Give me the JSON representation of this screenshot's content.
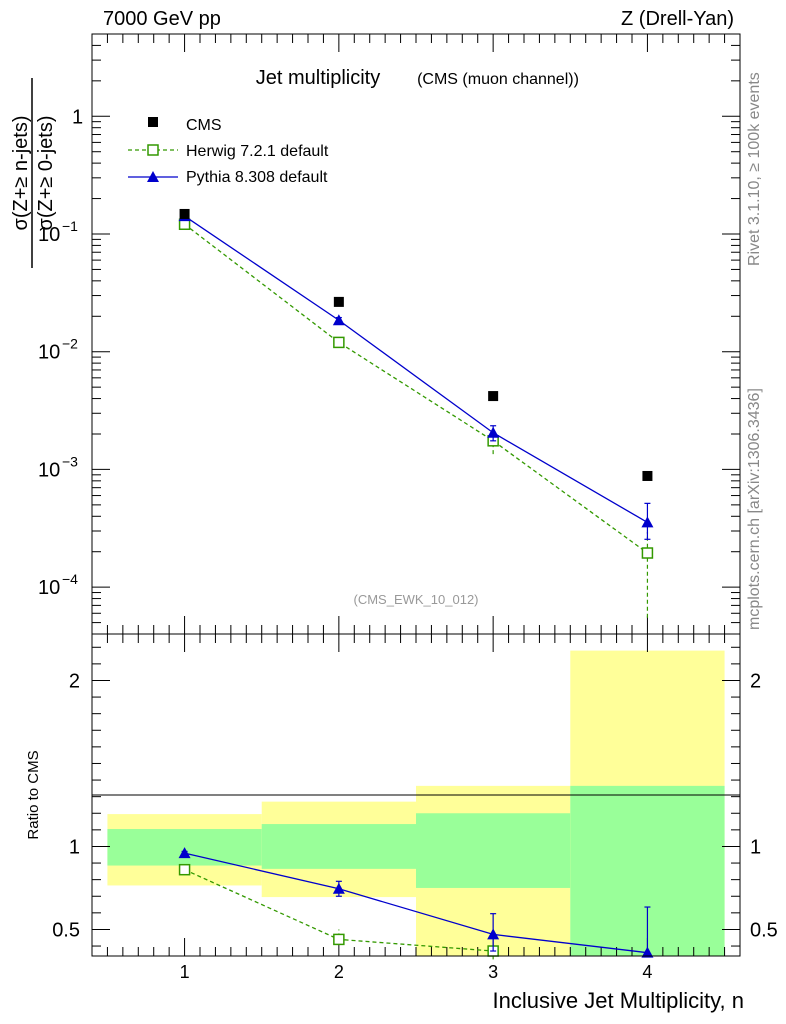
{
  "header": {
    "left": "7000 GeV pp",
    "right": "Z (Drell-Yan)"
  },
  "side_labels": {
    "rivet": "Rivet 3.1.10, ≥ 100k events",
    "mcplots": "mcplots.cern.ch [arXiv:1306.3436]"
  },
  "colors": {
    "cms": "#000000",
    "herwig": "#339900",
    "pythia": "#0000cc",
    "band_yellow": "#ffff99",
    "band_green": "#99ff99"
  },
  "chart_data": [
    {
      "type": "scatter",
      "title": "Jet multiplicity",
      "subtitle": "(CMS (muon channel))",
      "ylabel": "σ(Z+≥ n-jets) / σ(Z+≥ 0-jets)",
      "yscale": "log",
      "ylim": [
        4e-05,
        5
      ],
      "xlim": [
        0.4,
        4.6
      ],
      "yticks": [
        {
          "value": 1,
          "base": "1",
          "exp": ""
        },
        {
          "value": 0.1,
          "base": "10",
          "exp": "−1"
        },
        {
          "value": 0.01,
          "base": "10",
          "exp": "−2"
        },
        {
          "value": 0.001,
          "base": "10",
          "exp": "−3"
        },
        {
          "value": 0.0001,
          "base": "10",
          "exp": "−4"
        }
      ],
      "analysis_label": "(CMS_EWK_10_012)",
      "legend_position": "top-left",
      "x": [
        1,
        2,
        3,
        4
      ],
      "series": [
        {
          "name": "CMS",
          "style": "marker",
          "values": [
            0.148,
            0.0265,
            0.0042,
            0.00088
          ]
        },
        {
          "name": "Herwig 7.2.1 default",
          "style": "dashed-open-square",
          "values": [
            0.121,
            0.012,
            0.00175,
            0.000195
          ],
          "err_low": [
            0.004,
            0.0008,
            0.0004,
            0.00014
          ],
          "err_high": [
            0.004,
            0.0008,
            0.0004,
            0.0001
          ]
        },
        {
          "name": "Pythia 8.308 default",
          "style": "solid-triangle",
          "values": [
            0.142,
            0.0185,
            0.00205,
            0.000355
          ],
          "err_low": [
            0.004,
            0.001,
            0.0003,
            0.0001
          ],
          "err_high": [
            0.004,
            0.001,
            0.0003,
            0.00016
          ]
        }
      ]
    },
    {
      "type": "line",
      "ylabel": "Ratio to CMS",
      "xlabel": "Inclusive Jet Multiplicity, n",
      "ylim": [
        0.34,
        2.28
      ],
      "yticks": [
        0.5,
        1,
        2
      ],
      "xticks": [
        "1",
        "2",
        "3",
        "4"
      ],
      "reference": 1,
      "bands": [
        {
          "x": [
            0.5,
            1.5
          ],
          "yellow": [
            0.765,
            1.195
          ],
          "green": [
            0.885,
            1.105
          ]
        },
        {
          "x": [
            1.5,
            2.5
          ],
          "yellow": [
            0.695,
            1.27
          ],
          "green": [
            0.865,
            1.135
          ]
        },
        {
          "x": [
            2.5,
            3.5
          ],
          "yellow": [
            0.34,
            1.365
          ],
          "green": [
            0.75,
            1.2
          ]
        },
        {
          "x": [
            3.5,
            4.5
          ],
          "yellow": [
            0.34,
            2.18
          ],
          "green": [
            0.34,
            1.365
          ]
        }
      ],
      "x": [
        1,
        2,
        3,
        4
      ],
      "series": [
        {
          "name": "Herwig 7.2.1 default",
          "values": [
            0.86,
            0.44,
            0.37,
            null
          ],
          "err_low": [
            0.02,
            0.03,
            0.05,
            null
          ],
          "err_high": [
            0.02,
            0.06,
            0.0,
            null
          ]
        },
        {
          "name": "Pythia 8.308 default",
          "values": [
            0.96,
            0.745,
            0.47,
            0.36
          ],
          "err_low": [
            0.01,
            0.045,
            0.1,
            0.02
          ],
          "err_high": [
            0.01,
            0.045,
            0.125,
            0.275
          ]
        }
      ]
    }
  ]
}
